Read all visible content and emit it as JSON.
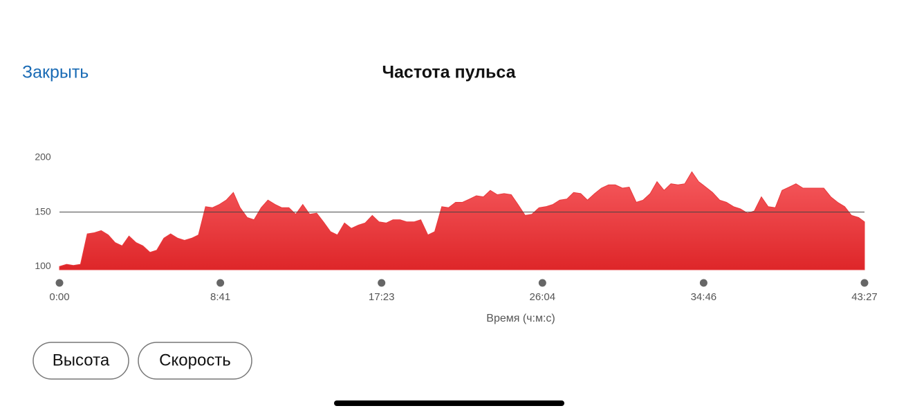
{
  "header": {
    "close": "Закрыть",
    "title": "Частота пульса"
  },
  "chart_data": {
    "type": "area",
    "x_label": "Время (ч:м:с)",
    "color": "#e8393c",
    "x": [
      0,
      23,
      45,
      68,
      90,
      113,
      135,
      158,
      180,
      203,
      225,
      248,
      270,
      293,
      315,
      338,
      360,
      383,
      405,
      428,
      450,
      473,
      495,
      518,
      540,
      563,
      585,
      608,
      630,
      653,
      675,
      698,
      720,
      743,
      765,
      788,
      810,
      833,
      855,
      878,
      900,
      923,
      945,
      968,
      990,
      1013,
      1035,
      1058,
      1080,
      1103,
      1125,
      1148,
      1170,
      1193,
      1215,
      1238,
      1260,
      1283,
      1305,
      1328,
      1350,
      1373,
      1395,
      1418,
      1440,
      1463,
      1485,
      1508,
      1530,
      1553,
      1575,
      1598,
      1620,
      1643,
      1665,
      1688,
      1710,
      1733,
      1755,
      1778,
      1800,
      1823,
      1845,
      1868,
      1890,
      1913,
      1935,
      1958,
      1980,
      2003,
      2025,
      2048,
      2070,
      2093,
      2115,
      2138,
      2160,
      2183,
      2205,
      2228,
      2250,
      2273,
      2295,
      2318,
      2340,
      2363,
      2385,
      2408,
      2430,
      2453,
      2475,
      2498,
      2520,
      2543,
      2565,
      2588,
      2607
    ],
    "values": [
      100,
      102,
      101,
      102,
      130,
      131,
      133,
      129,
      122,
      119,
      128,
      122,
      119,
      113,
      115,
      126,
      130,
      126,
      124,
      126,
      129,
      155,
      154,
      157,
      161,
      168,
      154,
      145,
      143,
      154,
      161,
      157,
      154,
      154,
      148,
      157,
      148,
      149,
      141,
      132,
      129,
      140,
      135,
      138,
      140,
      147,
      141,
      140,
      143,
      143,
      141,
      141,
      143,
      129,
      132,
      155,
      154,
      159,
      159,
      162,
      165,
      164,
      170,
      166,
      167,
      166,
      157,
      147,
      148,
      154,
      155,
      157,
      161,
      162,
      168,
      167,
      161,
      167,
      172,
      175,
      175,
      172,
      173,
      159,
      161,
      167,
      178,
      170,
      176,
      175,
      176,
      187,
      178,
      173,
      168,
      161,
      159,
      155,
      153,
      149,
      151,
      164,
      155,
      154,
      170,
      173,
      176,
      172,
      172,
      172,
      172,
      164,
      159,
      155,
      147,
      145,
      141
    ],
    "xlim": [
      0,
      2607
    ],
    "xticks": [
      {
        "value": 0,
        "label": "0:00"
      },
      {
        "value": 521,
        "label": "8:41"
      },
      {
        "value": 1043,
        "label": "17:23"
      },
      {
        "value": 1564,
        "label": "26:04"
      },
      {
        "value": 2086,
        "label": "34:46"
      },
      {
        "value": 2607,
        "label": "43:27"
      }
    ],
    "ylim": [
      97,
      200
    ],
    "yticks": [
      100,
      150,
      200
    ],
    "reference_line": 150
  },
  "buttons": [
    "Высота",
    "Скорость"
  ]
}
